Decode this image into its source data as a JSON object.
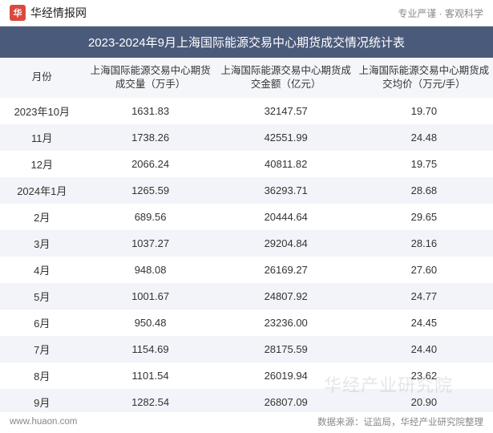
{
  "header": {
    "logo_glyph": "华",
    "site_name": "华经情报网",
    "tagline": "专业严谨 · 客观科学"
  },
  "title": "2023-2024年9月上海国际能源交易中心期货成交情况统计表",
  "table": {
    "columns": [
      "月份",
      "上海国际能源交易中心期货成交量（万手）",
      "上海国际能源交易中心期货成交金额（亿元）",
      "上海国际能源交易中心期货成交均价（万元/手）"
    ],
    "rows": [
      [
        "2023年10月",
        "1631.83",
        "32147.57",
        "19.70"
      ],
      [
        "11月",
        "1738.26",
        "42551.99",
        "24.48"
      ],
      [
        "12月",
        "2066.24",
        "40811.82",
        "19.75"
      ],
      [
        "2024年1月",
        "1265.59",
        "36293.71",
        "28.68"
      ],
      [
        "2月",
        "689.56",
        "20444.64",
        "29.65"
      ],
      [
        "3月",
        "1037.27",
        "29204.84",
        "28.16"
      ],
      [
        "4月",
        "948.08",
        "26169.27",
        "27.60"
      ],
      [
        "5月",
        "1001.67",
        "24807.92",
        "24.77"
      ],
      [
        "6月",
        "950.48",
        "23236.00",
        "24.45"
      ],
      [
        "7月",
        "1154.69",
        "28175.59",
        "24.40"
      ],
      [
        "8月",
        "1101.54",
        "26019.94",
        "23.62"
      ],
      [
        "9月",
        "1282.54",
        "26807.09",
        "20.90"
      ]
    ]
  },
  "footer": {
    "url": "www.huaon.com",
    "source": "数据来源：证监局，华经产业研究院整理"
  },
  "watermark": "华经产业研究院",
  "colors": {
    "title_bg": "#4a5a7a",
    "header_bg": "#f5f6fa",
    "row_alt_bg": "#f2f4f9",
    "logo_bg": "#d94a3e",
    "text": "#333333",
    "muted": "#888888"
  }
}
